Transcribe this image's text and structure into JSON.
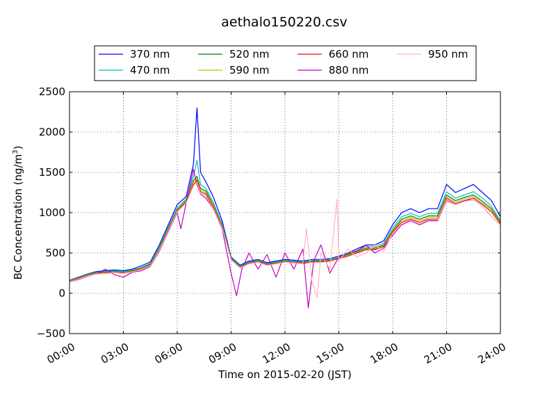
{
  "chart_data": {
    "type": "line",
    "title": "aethalo150220.csv",
    "xlabel": "Time on 2015-02-20 (JST)",
    "ylabel_main": "BC Concentration (ng/m",
    "ylabel_sup": "3",
    "ylabel_end": ")",
    "xlim": [
      0,
      24
    ],
    "ylim": [
      -500,
      2500
    ],
    "x_ticks": [
      {
        "value": 0,
        "label": "00:00"
      },
      {
        "value": 3,
        "label": "03:00"
      },
      {
        "value": 6,
        "label": "06:00"
      },
      {
        "value": 9,
        "label": "09:00"
      },
      {
        "value": 12,
        "label": "12:00"
      },
      {
        "value": 15,
        "label": "15:00"
      },
      {
        "value": 18,
        "label": "18:00"
      },
      {
        "value": 21,
        "label": "21:00"
      },
      {
        "value": 24,
        "label": "24:00"
      }
    ],
    "y_ticks": [
      {
        "value": -500,
        "label": "−500"
      },
      {
        "value": 0,
        "label": "0"
      },
      {
        "value": 500,
        "label": "500"
      },
      {
        "value": 1000,
        "label": "1000"
      },
      {
        "value": 1500,
        "label": "1500"
      },
      {
        "value": 2000,
        "label": "2000"
      },
      {
        "value": 2500,
        "label": "2500"
      }
    ],
    "grid": true,
    "legend_position": "top (above plot)",
    "series": [
      {
        "name": "370 nm",
        "color": "#0000ff",
        "x": [
          0,
          0.5,
          1,
          1.5,
          2,
          2.5,
          3,
          3.5,
          4,
          4.5,
          5,
          5.5,
          6,
          6.5,
          6.9,
          7.1,
          7.3,
          7.6,
          8,
          8.5,
          9,
          9.5,
          10,
          10.5,
          11,
          11.5,
          12,
          12.5,
          13,
          13.5,
          14,
          14.5,
          15,
          15.5,
          16,
          16.5,
          17,
          17.5,
          18,
          18.5,
          19,
          19.5,
          20,
          20.5,
          21,
          21.5,
          22,
          22.5,
          23,
          23.5,
          24
        ],
        "y": [
          160,
          200,
          240,
          270,
          280,
          290,
          280,
          300,
          340,
          390,
          600,
          850,
          1100,
          1200,
          1600,
          2300,
          1500,
          1380,
          1200,
          900,
          450,
          350,
          400,
          420,
          380,
          400,
          420,
          410,
          400,
          420,
          420,
          430,
          460,
          500,
          550,
          600,
          600,
          650,
          850,
          1000,
          1050,
          1000,
          1050,
          1050,
          1350,
          1250,
          1300,
          1350,
          1250,
          1150,
          950
        ]
      },
      {
        "name": "470 nm",
        "color": "#00bfbf",
        "x": [
          0,
          0.5,
          1,
          1.5,
          2,
          2.5,
          3,
          3.5,
          4,
          4.5,
          5,
          5.5,
          6,
          6.5,
          6.9,
          7.1,
          7.3,
          7.6,
          8,
          8.5,
          9,
          9.5,
          10,
          10.5,
          11,
          11.5,
          12,
          12.5,
          13,
          13.5,
          14,
          14.5,
          15,
          15.5,
          16,
          16.5,
          17,
          17.5,
          18,
          18.5,
          19,
          19.5,
          20,
          20.5,
          21,
          21.5,
          22,
          22.5,
          23,
          23.5,
          24
        ],
        "y": [
          155,
          195,
          235,
          260,
          270,
          280,
          270,
          290,
          320,
          370,
          580,
          820,
          1060,
          1170,
          1450,
          1650,
          1350,
          1300,
          1130,
          860,
          440,
          340,
          390,
          410,
          370,
          390,
          410,
          400,
          390,
          410,
          410,
          420,
          450,
          490,
          530,
          580,
          580,
          620,
          810,
          950,
          990,
          950,
          990,
          990,
          1260,
          1180,
          1220,
          1260,
          1180,
          1080,
          900
        ]
      },
      {
        "name": "520 nm",
        "color": "#008000",
        "x": [
          0,
          0.5,
          1,
          1.5,
          2,
          2.5,
          3,
          3.5,
          4,
          4.5,
          5,
          5.5,
          6,
          6.5,
          6.9,
          7.1,
          7.3,
          7.6,
          8,
          8.5,
          9,
          9.5,
          10,
          10.5,
          11,
          11.5,
          12,
          12.5,
          13,
          13.5,
          14,
          14.5,
          15,
          15.5,
          16,
          16.5,
          17,
          17.5,
          18,
          18.5,
          19,
          19.5,
          20,
          20.5,
          21,
          21.5,
          22,
          22.5,
          23,
          23.5,
          24
        ],
        "y": [
          150,
          190,
          230,
          255,
          260,
          270,
          260,
          280,
          310,
          360,
          560,
          800,
          1040,
          1150,
          1400,
          1450,
          1300,
          1270,
          1100,
          840,
          430,
          330,
          380,
          400,
          360,
          380,
          400,
          390,
          380,
          400,
          400,
          410,
          440,
          480,
          520,
          560,
          560,
          600,
          780,
          920,
          960,
          920,
          960,
          960,
          1220,
          1150,
          1190,
          1220,
          1140,
          1050,
          880
        ]
      },
      {
        "name": "590 nm",
        "color": "#bfbf00",
        "x": [
          0,
          0.5,
          1,
          1.5,
          2,
          2.5,
          3,
          3.5,
          4,
          4.5,
          5,
          5.5,
          6,
          6.5,
          6.9,
          7.1,
          7.3,
          7.6,
          8,
          8.5,
          9,
          9.5,
          10,
          10.5,
          11,
          11.5,
          12,
          12.5,
          13,
          13.5,
          14,
          14.5,
          15,
          15.5,
          16,
          16.5,
          17,
          17.5,
          18,
          18.5,
          19,
          19.5,
          20,
          20.5,
          21,
          21.5,
          22,
          22.5,
          23,
          23.5,
          24
        ],
        "y": [
          148,
          185,
          225,
          250,
          255,
          265,
          255,
          275,
          305,
          350,
          550,
          790,
          1030,
          1140,
          1380,
          1420,
          1280,
          1250,
          1090,
          830,
          425,
          325,
          375,
          395,
          355,
          375,
          395,
          385,
          375,
          395,
          395,
          405,
          435,
          470,
          510,
          550,
          550,
          590,
          770,
          900,
          940,
          900,
          940,
          940,
          1200,
          1130,
          1170,
          1200,
          1120,
          1030,
          870
        ]
      },
      {
        "name": "660 nm",
        "color": "#ff0000",
        "x": [
          0,
          0.5,
          1,
          1.5,
          2,
          2.5,
          3,
          3.5,
          4,
          4.5,
          5,
          5.5,
          6,
          6.5,
          6.9,
          7.1,
          7.3,
          7.6,
          8,
          8.5,
          9,
          9.5,
          10,
          10.5,
          11,
          11.5,
          12,
          12.5,
          13,
          13.5,
          14,
          14.5,
          15,
          15.5,
          16,
          16.5,
          17,
          17.5,
          18,
          18.5,
          19,
          19.5,
          20,
          20.5,
          21,
          21.5,
          22,
          22.5,
          23,
          23.5,
          24
        ],
        "y": [
          145,
          180,
          220,
          245,
          250,
          260,
          250,
          270,
          300,
          340,
          540,
          780,
          1020,
          1130,
          1350,
          1400,
          1260,
          1230,
          1070,
          820,
          420,
          320,
          370,
          390,
          350,
          370,
          390,
          380,
          370,
          390,
          390,
          400,
          430,
          460,
          500,
          540,
          540,
          580,
          760,
          880,
          920,
          880,
          920,
          920,
          1180,
          1110,
          1150,
          1180,
          1100,
          1010,
          860
        ]
      },
      {
        "name": "880 nm",
        "color": "#bf00bf",
        "x": [
          0,
          0.5,
          1,
          1.5,
          2,
          2.5,
          3,
          3.5,
          4,
          4.5,
          5,
          5.5,
          6,
          6.2,
          6.5,
          6.9,
          7.1,
          7.3,
          7.6,
          8,
          8.5,
          9,
          9.3,
          9.6,
          10,
          10.5,
          11,
          11.5,
          12,
          12.5,
          13,
          13.3,
          13.6,
          14,
          14.5,
          15,
          15.5,
          16,
          16.5,
          17,
          17.5,
          18,
          18.5,
          19,
          19.5,
          20,
          20.5,
          21,
          21.5,
          22,
          22.5,
          23,
          23.5,
          24
        ],
        "y": [
          140,
          170,
          210,
          240,
          300,
          230,
          200,
          260,
          280,
          330,
          520,
          760,
          1000,
          800,
          1120,
          1540,
          1350,
          1230,
          1180,
          1050,
          800,
          250,
          -30,
          300,
          500,
          300,
          480,
          200,
          500,
          300,
          550,
          -180,
          400,
          600,
          250,
          450,
          500,
          520,
          600,
          500,
          560,
          720,
          850,
          900,
          850,
          900,
          900,
          1150,
          1100,
          1150,
          1160,
          1080,
          950,
          850
        ]
      },
      {
        "name": "950 nm",
        "color": "#ffb6c1",
        "x": [
          0,
          0.5,
          1,
          1.5,
          2,
          2.5,
          3,
          3.5,
          4,
          4.5,
          5,
          5.5,
          6,
          6.5,
          6.9,
          7.1,
          7.3,
          7.6,
          8,
          8.5,
          9,
          9.5,
          10,
          10.5,
          11,
          11.5,
          12,
          12.5,
          13,
          13.2,
          13.5,
          13.8,
          14,
          14.5,
          14.9,
          15,
          15.5,
          16,
          16.5,
          17,
          17.5,
          18,
          18.5,
          19,
          19.5,
          20,
          20.5,
          21,
          21.5,
          22,
          22.5,
          23,
          23.5,
          24
        ],
        "y": [
          140,
          175,
          215,
          240,
          245,
          255,
          245,
          265,
          295,
          335,
          530,
          770,
          1010,
          1120,
          1330,
          1380,
          1240,
          1210,
          1050,
          810,
          415,
          315,
          365,
          385,
          345,
          365,
          385,
          375,
          365,
          800,
          150,
          -50,
          500,
          300,
          1170,
          400,
          550,
          450,
          500,
          600,
          520,
          740,
          870,
          910,
          860,
          910,
          910,
          1160,
          1100,
          1140,
          1160,
          1080,
          950,
          850
        ]
      }
    ]
  }
}
